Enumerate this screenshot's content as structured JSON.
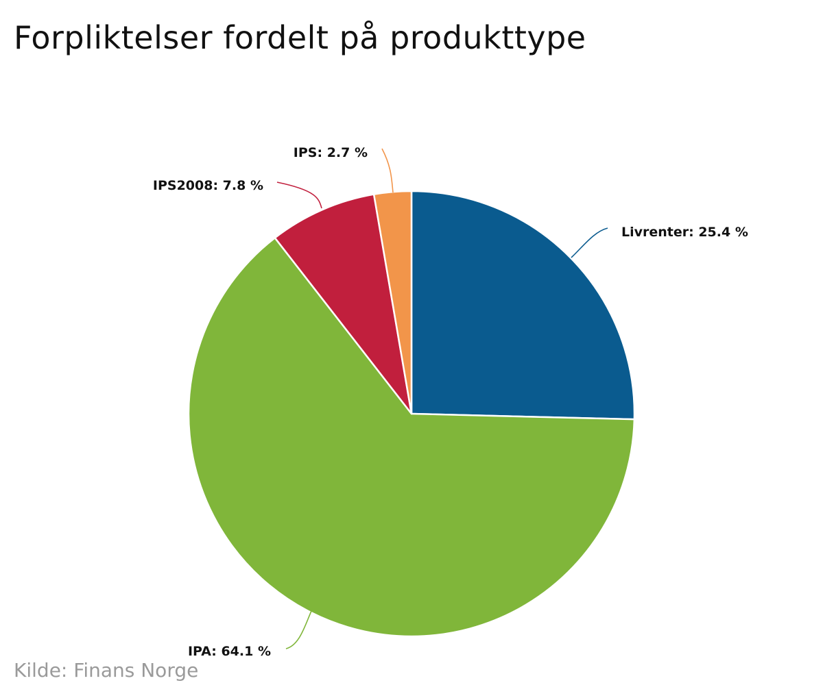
{
  "chart_data": {
    "type": "pie",
    "title": "Forpliktelser fordelt på produkttype",
    "slices": [
      {
        "name": "Livrenter",
        "value": 25.4,
        "label": "Livrenter: 25.4 %",
        "color": "#0a5b8f"
      },
      {
        "name": "IPA",
        "value": 64.1,
        "label": "IPA: 64.1 %",
        "color": "#80b63a"
      },
      {
        "name": "IPS2008",
        "value": 7.8,
        "label": "IPS2008: 7.8 %",
        "color": "#c11f3d"
      },
      {
        "name": "IPS",
        "value": 2.7,
        "label": "IPS: 2.7 %",
        "color": "#f2954a"
      }
    ],
    "start_angle": "12 o'clock",
    "direction": "clockwise",
    "legend": "none",
    "data_labels": "outside with connector lines"
  },
  "source": "Kilde: Finans Norge"
}
